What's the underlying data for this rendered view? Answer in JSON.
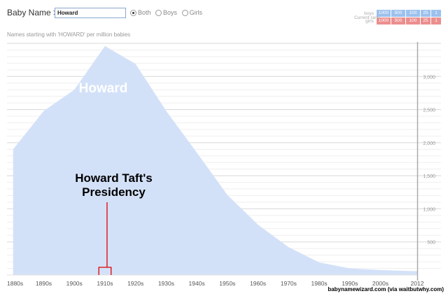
{
  "header": {
    "title": "Baby Name >",
    "name_input_value": "Howard",
    "gender_options": [
      {
        "label": "Both",
        "checked": true
      },
      {
        "label": "Boys",
        "checked": false
      },
      {
        "label": "Girls",
        "checked": false
      }
    ]
  },
  "rank_filter": {
    "boys_label": "boys",
    "girls_label": "girls",
    "current_rank_label": "Current rank:",
    "buckets": [
      "1000",
      "500",
      "100",
      "25",
      "1"
    ],
    "boys_color": "#9cc1ee",
    "girls_color": "#ec8e8e"
  },
  "subtitle": "Names starting with 'HOWARD' per million babies",
  "series_label": "Howard",
  "annotation": {
    "line1": "Howard Taft's",
    "line2": "Presidency",
    "color": "#dd0000"
  },
  "credit": "babynamewizard.com (via waitbutwhy.com)",
  "chart_data": {
    "type": "area",
    "x_ticks": [
      "1880s",
      "1890s",
      "1900s",
      "1910s",
      "1920s",
      "1930s",
      "1940s",
      "1950s",
      "1960s",
      "1970s",
      "1980s",
      "1990s",
      "2000s",
      "2012"
    ],
    "y_ticks": [
      "500",
      "1,000",
      "1,500",
      "2,000",
      "2,500",
      "3,000"
    ],
    "ylim": [
      0,
      3500
    ],
    "series": [
      {
        "name": "Howard",
        "color": "#d3e1f8",
        "points": [
          {
            "x": 1880,
            "y": 1900
          },
          {
            "x": 1890,
            "y": 2480
          },
          {
            "x": 1900,
            "y": 2800
          },
          {
            "x": 1910,
            "y": 3460
          },
          {
            "x": 1920,
            "y": 3190
          },
          {
            "x": 1930,
            "y": 2480
          },
          {
            "x": 1940,
            "y": 1850
          },
          {
            "x": 1950,
            "y": 1210
          },
          {
            "x": 1960,
            "y": 760
          },
          {
            "x": 1970,
            "y": 420
          },
          {
            "x": 1980,
            "y": 190
          },
          {
            "x": 1990,
            "y": 100
          },
          {
            "x": 2000,
            "y": 75
          },
          {
            "x": 2010,
            "y": 60
          },
          {
            "x": 2012,
            "y": 60
          }
        ]
      }
    ],
    "x_start": 1878,
    "x_end": 2012,
    "annotation_range": [
      1908,
      1912
    ],
    "grid": true
  }
}
